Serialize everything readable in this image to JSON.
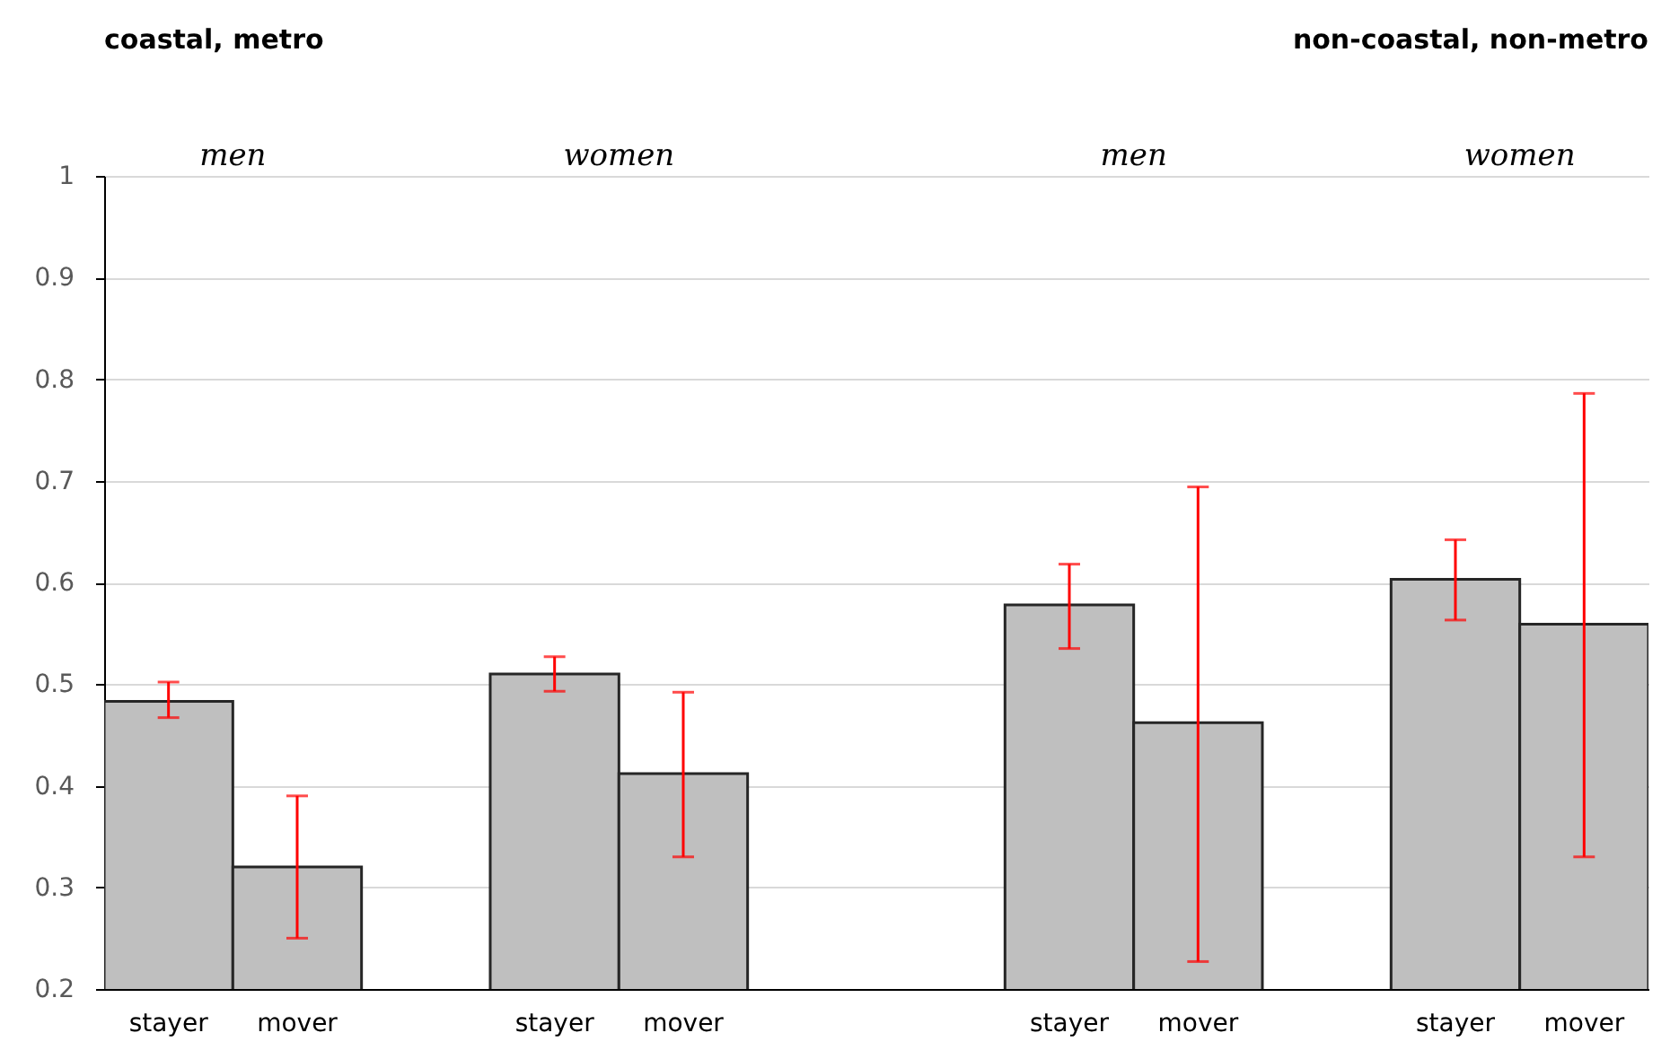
{
  "chart_data": {
    "type": "bar",
    "categories": [
      "stayer",
      "mover",
      null,
      "stayer",
      "mover",
      null,
      null,
      "stayer",
      "mover",
      null,
      "stayer",
      "mover"
    ],
    "values": [
      0.483,
      0.32,
      null,
      0.51,
      0.412,
      null,
      null,
      0.578,
      0.462,
      null,
      0.603,
      0.559
    ],
    "errors": [
      [
        0.467,
        0.502
      ],
      [
        0.25,
        0.39
      ],
      null,
      [
        0.493,
        0.527
      ],
      [
        0.33,
        0.492
      ],
      null,
      null,
      [
        0.535,
        0.618
      ],
      [
        0.227,
        0.694
      ],
      null,
      [
        0.563,
        0.642
      ],
      [
        0.33,
        0.786
      ]
    ],
    "color": "#bfbfbf",
    "ylim": [
      0.2,
      1
    ],
    "yticks": [
      0.2,
      0.3,
      0.4,
      0.5,
      0.6,
      0.7,
      0.8,
      0.9,
      1
    ],
    "grid": "y",
    "annotations": [
      "coastal, metro",
      "non-coastal, non-metro",
      "men",
      "women",
      "men",
      "women"
    ]
  }
}
